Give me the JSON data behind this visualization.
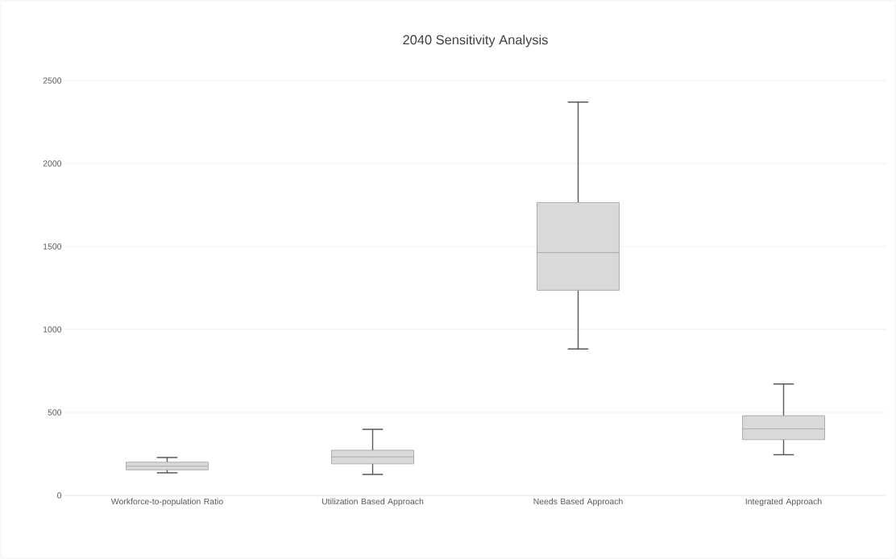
{
  "chart_data": {
    "type": "box",
    "title": "2040 Sensitivity Analysis",
    "categories": [
      "Workforce-to-population Ratio",
      "Utilization Based Approach",
      "Needs Based Approach",
      "Integrated Approach"
    ],
    "boxes": [
      {
        "low": 136,
        "q1": 154,
        "median": 176,
        "q3": 200,
        "high": 228
      },
      {
        "low": 126,
        "q1": 190,
        "median": 232,
        "q3": 272,
        "high": 398
      },
      {
        "low": 882,
        "q1": 1236,
        "median": 1463,
        "q3": 1765,
        "high": 2370
      },
      {
        "low": 245,
        "q1": 336,
        "median": 401,
        "q3": 480,
        "high": 671
      }
    ],
    "color": "#d9d9d9",
    "ylim": [
      0,
      2500
    ],
    "yticks": [
      0,
      500,
      1000,
      1500,
      2000,
      2500
    ],
    "grid": "y"
  }
}
